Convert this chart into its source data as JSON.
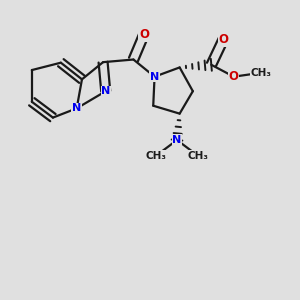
{
  "bg_color": "#e0e0e0",
  "bond_color": "#1a1a1a",
  "n_color": "#0000ee",
  "o_color": "#cc0000",
  "lw": 1.6,
  "dbo": 0.018
}
